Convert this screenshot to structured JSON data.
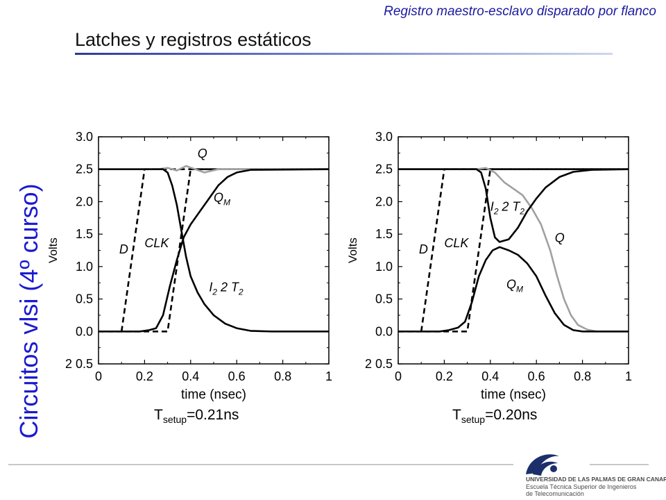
{
  "header": {
    "caption": "Registro maestro-esclavo disparado por flanco",
    "title": "Latches y registros estáticos"
  },
  "sidebar": {
    "vertical_title": "Circuitos vlsi (4º curso)"
  },
  "footer": {
    "logo_line1": "UNIVERSIDAD DE LAS PALMAS DE GRAN CANARIA",
    "logo_line2": "Escuela Técnica Superior de Ingenieros",
    "logo_line3": "de Telecomunicación"
  },
  "colors": {
    "accent": "#1a1ad0",
    "curve_black": "#000000",
    "curve_gray": "#a0a0a0"
  },
  "chart_data": [
    {
      "type": "line",
      "xlabel": "time (nsec)",
      "ylabel": "Volts",
      "xlim": [
        0,
        1
      ],
      "ylim": [
        -0.5,
        3.0
      ],
      "xticks": [
        0,
        0.2,
        0.4,
        0.6,
        0.8,
        1
      ],
      "xtick_labels": [
        "0",
        "0.2",
        "0.4",
        "0.6",
        "0.8",
        "1"
      ],
      "yticks": [
        -0.5,
        0,
        0.5,
        1.0,
        1.5,
        2.0,
        2.5,
        3.0
      ],
      "ytick_labels": [
        "2 0.5",
        "0.0",
        "0.5",
        "1.0",
        "1.5",
        "2.0",
        "2.5",
        "3.0"
      ],
      "caption_main": "T",
      "caption_sub": "setup",
      "caption_value": "=0.21ns",
      "annotations": [
        {
          "text": "Q",
          "x": 0.43,
          "y": 2.68
        },
        {
          "text": "Q",
          "sub": "M",
          "x": 0.5,
          "y": 2.0
        },
        {
          "text": "CLK",
          "x": 0.2,
          "y": 1.3
        },
        {
          "text": "D",
          "x": 0.09,
          "y": 1.2
        },
        {
          "text": "I",
          "sub": "2",
          "x": 0.48,
          "y": 0.62
        },
        {
          "text": "2  T",
          "sub": "2",
          "x": 0.53,
          "y": 0.62
        }
      ],
      "series": [
        {
          "style": "dashed",
          "color": "#000000",
          "x": [
            0.1,
            0.2,
            1.0
          ],
          "y": [
            0.0,
            2.5,
            2.5
          ]
        },
        {
          "style": "dashed",
          "color": "#000000",
          "x": [
            0.0,
            0.3,
            0.4,
            1.0
          ],
          "y": [
            0.0,
            0.0,
            2.5,
            2.5
          ]
        },
        {
          "style": "solid",
          "color": "#a0a0a0",
          "x": [
            0.0,
            0.26,
            0.3,
            0.34,
            0.38,
            0.42,
            0.46,
            0.52,
            0.6,
            1.0
          ],
          "y": [
            2.5,
            2.5,
            2.52,
            2.48,
            2.55,
            2.5,
            2.45,
            2.5,
            2.5,
            2.5
          ]
        },
        {
          "style": "solid",
          "color": "#000000",
          "x": [
            0.0,
            0.18,
            0.22,
            0.25,
            0.28,
            0.31,
            0.34,
            0.37,
            0.4,
            0.44,
            0.48,
            0.52,
            0.56,
            0.6,
            0.66,
            1.0
          ],
          "y": [
            0.0,
            0.0,
            0.02,
            0.05,
            0.25,
            0.7,
            1.1,
            1.45,
            1.65,
            1.85,
            2.05,
            2.25,
            2.38,
            2.45,
            2.49,
            2.5
          ]
        },
        {
          "style": "solid",
          "color": "#000000",
          "x": [
            0.0,
            0.25,
            0.28,
            0.3,
            0.32,
            0.34,
            0.36,
            0.38,
            0.4,
            0.43,
            0.46,
            0.5,
            0.55,
            0.6,
            0.66,
            0.75,
            1.0
          ],
          "y": [
            2.5,
            2.5,
            2.5,
            2.45,
            2.25,
            1.95,
            1.55,
            1.15,
            0.85,
            0.6,
            0.42,
            0.25,
            0.12,
            0.05,
            0.01,
            0.0,
            0.0
          ]
        }
      ]
    },
    {
      "type": "line",
      "xlabel": "time (nsec)",
      "ylabel": "Volts",
      "xlim": [
        0,
        1
      ],
      "ylim": [
        -0.5,
        3.0
      ],
      "xticks": [
        0,
        0.2,
        0.4,
        0.6,
        0.8,
        1
      ],
      "xtick_labels": [
        "0",
        "0.2",
        "0.4",
        "0.6",
        "0.8",
        "1"
      ],
      "yticks": [
        -0.5,
        0,
        0.5,
        1.0,
        1.5,
        2.0,
        2.5,
        3.0
      ],
      "ytick_labels": [
        "2 0.5",
        "0.0",
        "0.5",
        "1.0",
        "1.5",
        "2.0",
        "2.5",
        "3.0"
      ],
      "caption_main": "T",
      "caption_sub": "setup",
      "caption_value": "=0.20ns",
      "annotations": [
        {
          "text": "I",
          "sub": "2",
          "x": 0.4,
          "y": 1.86
        },
        {
          "text": "2  T",
          "sub": "2",
          "x": 0.45,
          "y": 1.86
        },
        {
          "text": "Q",
          "x": 0.68,
          "y": 1.38
        },
        {
          "text": "CLK",
          "x": 0.2,
          "y": 1.3
        },
        {
          "text": "D",
          "x": 0.09,
          "y": 1.2
        },
        {
          "text": "Q",
          "sub": "M",
          "x": 0.47,
          "y": 0.66
        }
      ],
      "series": [
        {
          "style": "dashed",
          "color": "#000000",
          "x": [
            0.1,
            0.2,
            1.0
          ],
          "y": [
            0.0,
            2.5,
            2.5
          ]
        },
        {
          "style": "dashed",
          "color": "#000000",
          "x": [
            0.0,
            0.3,
            0.4,
            1.0
          ],
          "y": [
            0.0,
            0.0,
            2.5,
            2.5
          ]
        },
        {
          "style": "solid",
          "color": "#000000",
          "x": [
            0.0,
            1.0
          ],
          "y": [
            2.5,
            2.5
          ]
        },
        {
          "style": "solid",
          "color": "#a0a0a0",
          "x": [
            0.0,
            0.34,
            0.38,
            0.42,
            0.46,
            0.5,
            0.54,
            0.58,
            0.62,
            0.66,
            0.69,
            0.72,
            0.75,
            0.78,
            0.82,
            0.86,
            1.0
          ],
          "y": [
            2.5,
            2.5,
            2.52,
            2.45,
            2.3,
            2.2,
            2.1,
            1.9,
            1.65,
            1.25,
            0.85,
            0.5,
            0.25,
            0.1,
            0.03,
            0.0,
            0.0
          ]
        },
        {
          "style": "solid",
          "color": "#000000",
          "x": [
            0.0,
            0.34,
            0.36,
            0.38,
            0.4,
            0.42,
            0.44,
            0.48,
            0.52,
            0.56,
            0.6,
            0.64,
            0.7,
            0.76,
            0.84,
            1.0
          ],
          "y": [
            2.5,
            2.5,
            2.45,
            2.2,
            1.75,
            1.45,
            1.38,
            1.42,
            1.6,
            1.85,
            2.05,
            2.22,
            2.38,
            2.46,
            2.49,
            2.5
          ]
        },
        {
          "style": "solid",
          "color": "#000000",
          "x": [
            0.0,
            0.18,
            0.22,
            0.26,
            0.29,
            0.32,
            0.35,
            0.38,
            0.41,
            0.44,
            0.48,
            0.52,
            0.56,
            0.6,
            0.64,
            0.68,
            0.72,
            0.76,
            0.8,
            1.0
          ],
          "y": [
            0.0,
            0.0,
            0.02,
            0.06,
            0.15,
            0.45,
            0.85,
            1.1,
            1.25,
            1.3,
            1.25,
            1.18,
            1.05,
            0.85,
            0.55,
            0.28,
            0.1,
            0.02,
            0.0,
            0.0
          ]
        }
      ]
    }
  ]
}
